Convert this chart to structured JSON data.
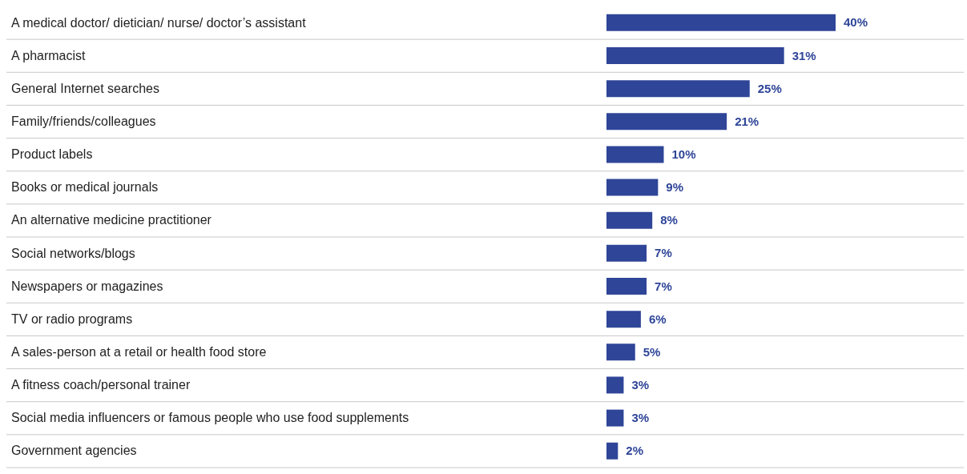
{
  "chart_data": {
    "type": "bar",
    "orientation": "horizontal",
    "categories": [
      "A medical doctor/ dietician/ nurse/ doctor’s assistant",
      "A pharmacist",
      "General Internet searches",
      "Family/friends/colleagues",
      "Product labels",
      "Books or medical journals",
      "An alternative medicine practitioner",
      "Social networks/blogs",
      "Newspapers or magazines",
      "TV or radio programs",
      "A sales-person at a retail or health food store",
      "A fitness coach/personal trainer",
      "Social media influencers or famous people who use food supplements",
      "Government agencies"
    ],
    "values": [
      40,
      31,
      25,
      21,
      10,
      9,
      8,
      7,
      7,
      6,
      5,
      3,
      3,
      2
    ],
    "value_labels": [
      "40%",
      "31%",
      "25%",
      "21%",
      "10%",
      "9%",
      "8%",
      "7%",
      "7%",
      "6%",
      "5%",
      "3%",
      "3%",
      "2%"
    ],
    "color": "#2e4598",
    "grid": "y",
    "tick_labels": "y"
  }
}
